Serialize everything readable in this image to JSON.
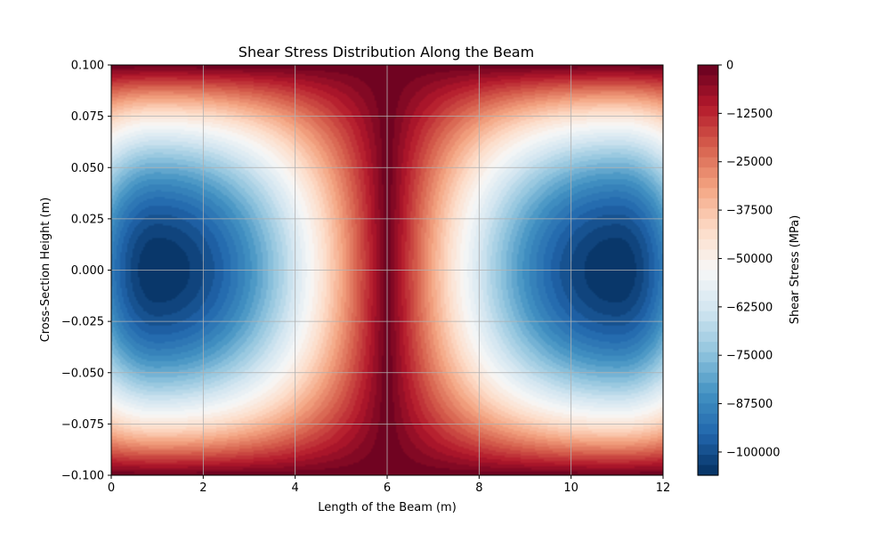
{
  "chart_data": {
    "type": "heatmap",
    "title": "Shear Stress Distribution Along the Beam",
    "xlabel": "Length of the Beam (m)",
    "ylabel": "Cross-Section Height (m)",
    "xlim": [
      0,
      12
    ],
    "ylim": [
      -0.1,
      0.1
    ],
    "x_ticks": [
      "0",
      "2",
      "4",
      "6",
      "8",
      "10",
      "12"
    ],
    "y_ticks": [
      "0.100",
      "0.075",
      "0.050",
      "0.025",
      "0.000",
      "−0.025",
      "−0.050",
      "−0.075",
      "−0.100"
    ],
    "grid": true,
    "colormap": "RdBu",
    "colorbar": {
      "label": "Shear Stress (MPa)",
      "range": [
        -106000,
        0
      ],
      "ticks": [
        "0",
        "−12500",
        "−25000",
        "−37500",
        "−50000",
        "−62500",
        "−75000",
        "−87500",
        "−100000"
      ]
    },
    "field": {
      "description_points": [
        {
          "x": 1,
          "y": 0.0,
          "value": -106000
        },
        {
          "x": 11,
          "y": 0.0,
          "value": -106000
        },
        {
          "x": 6,
          "y": 0.0,
          "value": 0
        },
        {
          "x": 1,
          "y": 0.1,
          "value": 0
        },
        {
          "x": 11,
          "y": -0.1,
          "value": 0
        }
      ],
      "peak_x": [
        1,
        11
      ],
      "zero_x": 6,
      "min_value": -106000
    }
  }
}
